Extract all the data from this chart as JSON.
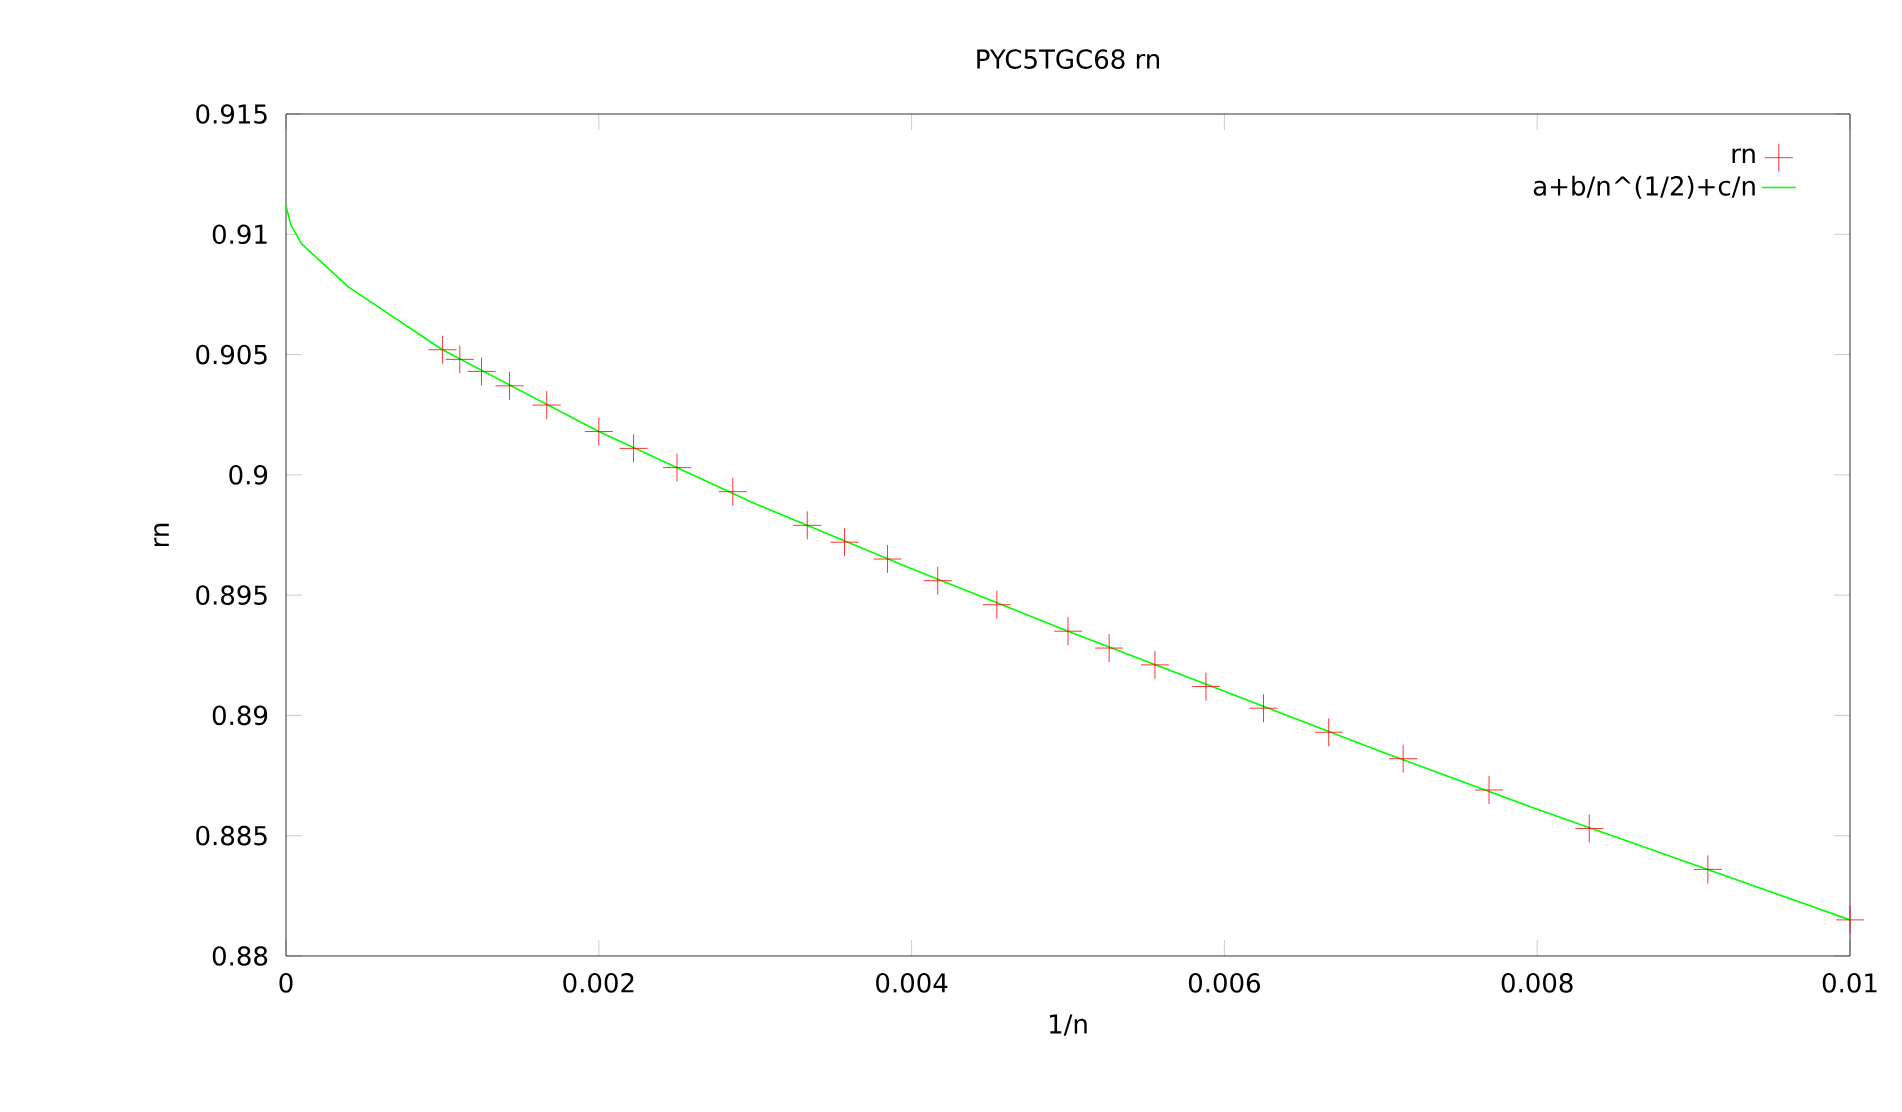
{
  "chart_data": {
    "type": "scatter",
    "title": "PYC5TGC68 rn",
    "xlabel": "1/n",
    "ylabel": "rn",
    "xlim": [
      0,
      0.01
    ],
    "ylim": [
      0.88,
      0.915
    ],
    "xticks": [
      0,
      0.002,
      0.004,
      0.006,
      0.008,
      {
        "value": 0.01,
        "label": "0.01"
      }
    ],
    "yticks": [
      {
        "value": 0.88,
        "label": "0.88"
      },
      0.885,
      {
        "value": 0.89,
        "label": "0.89"
      },
      0.895,
      {
        "value": 0.9,
        "label": "0.9"
      },
      0.905,
      {
        "value": 0.91,
        "label": "0.91"
      },
      0.915
    ],
    "grid": false,
    "legend": "top right",
    "marker": "cross",
    "series": [
      {
        "name": "rn",
        "color": "#ff0000",
        "x": [
          0.01,
          0.009091,
          0.008333,
          0.007692,
          0.007143,
          0.006667,
          0.00625,
          0.005882,
          0.005556,
          0.005263,
          0.005,
          0.004545,
          0.004167,
          0.003846,
          0.003571,
          0.003333,
          0.002857,
          0.0025,
          0.002222,
          0.002,
          0.001667,
          0.001429,
          0.00125,
          0.001111,
          0.001
        ],
        "values": [
          0.8815,
          0.8836,
          0.8853,
          0.8869,
          0.8882,
          0.8893,
          0.8903,
          0.8912,
          0.8921,
          0.8928,
          0.8935,
          0.8946,
          0.8956,
          0.8965,
          0.8972,
          0.8979,
          0.8993,
          0.9003,
          0.9011,
          0.9018,
          0.9029,
          0.9037,
          0.9043,
          0.9048,
          0.9052
        ]
      },
      {
        "name": "a+b/n^(1/2)+c/n",
        "type": "line",
        "color": "#00ff00",
        "marker": "none",
        "x": [
          0,
          3e-05,
          0.0001,
          0.0004,
          0.001,
          0.002,
          0.003,
          0.004,
          0.005,
          0.006,
          0.007,
          0.008,
          0.009,
          0.01
        ],
        "values": [
          0.9112,
          0.9104,
          0.9096,
          0.9078,
          0.9052,
          0.9018,
          0.8988,
          0.8961,
          0.8935,
          0.891,
          0.8885,
          0.8861,
          0.8838,
          0.8815
        ]
      }
    ]
  }
}
